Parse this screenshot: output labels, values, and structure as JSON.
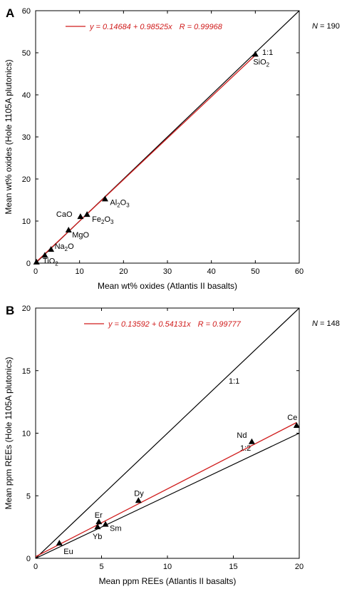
{
  "chart_data": [
    {
      "type": "scatter",
      "panel_label": "A",
      "n_label": "= 190",
      "xlabel": "Mean wt% oxides (Atlantis II basalts)",
      "ylabel": "Mean wt% oxides (Hole 1105A plutonics)",
      "xlim": [
        0,
        60
      ],
      "ylim": [
        0,
        60
      ],
      "xticks": [
        "0",
        "10",
        "20",
        "30",
        "40",
        "50",
        "60"
      ],
      "yticks": [
        "0",
        "10",
        "20",
        "30",
        "40",
        "50",
        "60"
      ],
      "legend": {
        "equation": "y = 0.14684 + 0.98525x",
        "r_value": "R = 0.99968",
        "color": "#d01c1c"
      },
      "fit": {
        "intercept": 0.14684,
        "slope": 0.98525,
        "color": "#d01c1c"
      },
      "reference_lines": [
        {
          "slope": 1,
          "label": "1:1"
        }
      ],
      "points": [
        {
          "x": 0.2,
          "y": 0.2,
          "label": ""
        },
        {
          "x": 2.1,
          "y": 1.8,
          "label": "TiO2",
          "base": "TiO",
          "sub": "2"
        },
        {
          "x": 3.5,
          "y": 3.2,
          "label": "Na2O",
          "base": "Na",
          "sub": "2",
          "suffix": "O"
        },
        {
          "x": 7.5,
          "y": 7.8,
          "label": "MgO"
        },
        {
          "x": 10.2,
          "y": 11.0,
          "label": "CaO"
        },
        {
          "x": 11.7,
          "y": 11.5,
          "label": "Fe2O3",
          "base": "Fe",
          "sub": "2",
          "suffix": "O",
          "sub2": "3"
        },
        {
          "x": 15.8,
          "y": 15.2,
          "label": "Al2O3",
          "base": "Al",
          "sub": "2",
          "suffix": "O",
          "sub2": "3"
        },
        {
          "x": 50.0,
          "y": 49.6,
          "label": "SiO2",
          "base": "SiO",
          "sub": "2"
        }
      ]
    },
    {
      "type": "scatter",
      "panel_label": "B",
      "n_label": "= 148",
      "xlabel": "Mean ppm REEs (Atlantis II basalts)",
      "ylabel": "Mean ppm REEs  (Hole 1105A plutonics)",
      "xlim": [
        0,
        20
      ],
      "ylim": [
        0,
        20
      ],
      "xticks": [
        "0",
        "5",
        "10",
        "15",
        "20"
      ],
      "yticks": [
        "0",
        "5",
        "10",
        "15",
        "20"
      ],
      "legend": {
        "equation": "y = 0.13592 + 0.54131x",
        "r_value": "R = 0.99777",
        "color": "#d01c1c"
      },
      "fit": {
        "intercept": 0.13592,
        "slope": 0.54131,
        "color": "#d01c1c"
      },
      "reference_lines": [
        {
          "slope": 1,
          "label": "1:1"
        },
        {
          "slope": 0.5,
          "label": "1:2"
        }
      ],
      "points": [
        {
          "x": 1.8,
          "y": 1.2,
          "label": "Eu"
        },
        {
          "x": 4.7,
          "y": 2.5,
          "label": "Yb"
        },
        {
          "x": 4.8,
          "y": 2.9,
          "label": "Er"
        },
        {
          "x": 5.3,
          "y": 2.7,
          "label": "Sm"
        },
        {
          "x": 7.8,
          "y": 4.6,
          "label": "Dy"
        },
        {
          "x": 16.4,
          "y": 9.3,
          "label": "Nd"
        },
        {
          "x": 19.8,
          "y": 10.6,
          "label": "Ce"
        }
      ]
    }
  ]
}
